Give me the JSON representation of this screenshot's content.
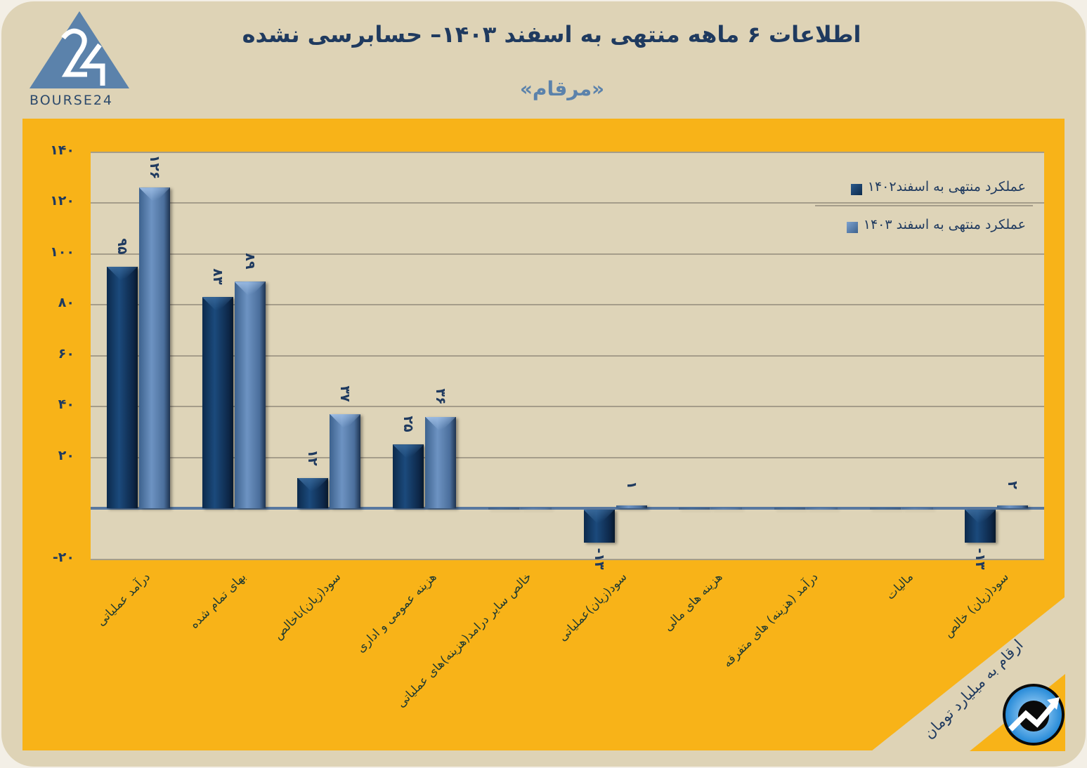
{
  "header": {
    "logo_text": "BOURSE24",
    "logo_mark": "24",
    "title": "اطلاعات ۶  ماهه منتهی به اسفند  ۱۴۰۳– حسابرسی نشده",
    "subtitle": "«مرقام»"
  },
  "footer": {
    "units_note": "ارقام به میلیارد تومان",
    "badge_icon": "trend-up-icon"
  },
  "colors": {
    "background": "#ded3b6",
    "frame": "#f8b318",
    "series_1402": "#163f6c",
    "series_1403": "#5a80ad",
    "text": "#1f3a5f"
  },
  "chart_data": {
    "type": "bar",
    "title": "اطلاعات ۶  ماهه منتهی به اسفند  ۱۴۰۳– حسابرسی نشده",
    "subtitle": "«مرقام»",
    "xlabel": "",
    "ylabel": "",
    "units": "ارقام به میلیارد تومان",
    "ylim": [
      -20,
      140
    ],
    "yticks": [
      "۱۴۰",
      "۱۲۰",
      "۱۰۰",
      "۸۰",
      "۶۰",
      "۴۰",
      "۲۰",
      "-۲۰"
    ],
    "ytick_values": [
      140,
      120,
      100,
      80,
      60,
      40,
      20,
      -20
    ],
    "grid": true,
    "legend_position": "top-right",
    "categories": [
      "درآمد عملیاتی",
      "بهای تمام شده",
      "سود(زیان)ناخالص",
      "هزینه عمومی و اداری",
      "خالص سایر درامد(هزینه)های عملیاتی",
      "سود(زیان)عملیاتی",
      "هزینه های مالی",
      "درآمد (هزینه) های متفرقه",
      "مالیات",
      "سود(زیان) خالص"
    ],
    "series": [
      {
        "name": "عملکرد منتهی به اسفند۱۴۰۲",
        "values": [
          95,
          83,
          12,
          25,
          0,
          -13,
          0,
          0,
          0,
          -13
        ],
        "labels": [
          "۹۵",
          "۸۳",
          "۱۲",
          "۲۵",
          "",
          "-۱۳",
          "",
          "",
          "",
          "-۱۳"
        ]
      },
      {
        "name": "عملکرد منتهی به اسفند ۱۴۰۳",
        "values": [
          126,
          89,
          37,
          36,
          0,
          1,
          0,
          0,
          0,
          2
        ],
        "labels": [
          "۱۲۶",
          "۸۹",
          "۳۷",
          "۳۶",
          "",
          "۱",
          "",
          "",
          "",
          "۲"
        ]
      }
    ]
  }
}
